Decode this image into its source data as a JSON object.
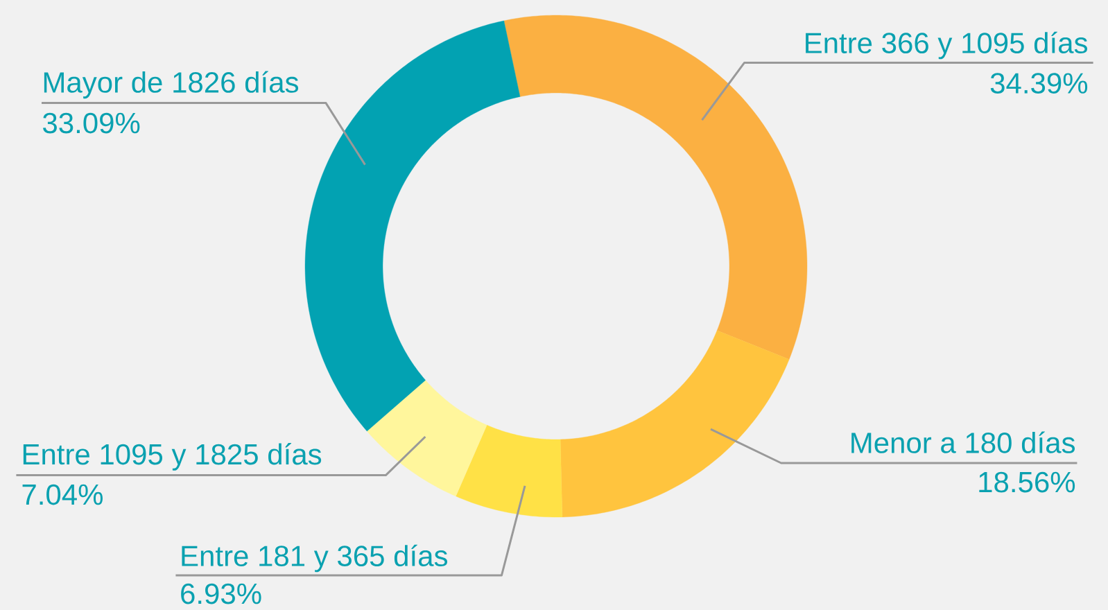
{
  "chart_data": {
    "type": "donut",
    "categories": [
      "Entre 366 y 1095 días",
      "Menor a 180 días",
      "Entre 181 y 365 días",
      "Entre 1095 y 1825 días",
      "Mayor de 1826 días"
    ],
    "values": [
      34.39,
      18.56,
      6.93,
      7.04,
      33.09
    ],
    "value_labels": [
      "34.39%",
      "18.56%",
      "6.93%",
      "7.04%",
      "33.09%"
    ],
    "colors": [
      "#fbb042",
      "#ffc43e",
      "#ffe146",
      "#fff69c",
      "#02a2b2"
    ]
  }
}
